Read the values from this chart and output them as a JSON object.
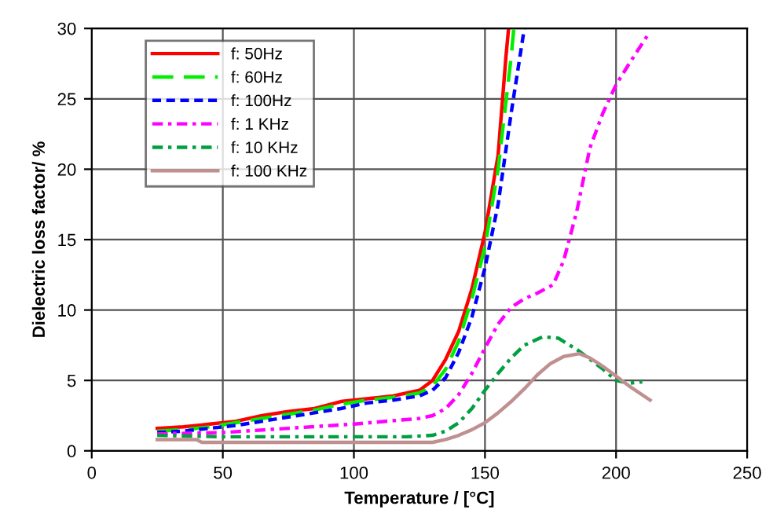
{
  "chart_data": {
    "type": "line",
    "xlabel": "Temperature / [°C]",
    "ylabel": "Dielectric loss factor/ %",
    "xlim": [
      0,
      250
    ],
    "xticks": [
      0,
      50,
      100,
      150,
      200,
      250
    ],
    "ylim": [
      0,
      30
    ],
    "yticks": [
      0,
      5,
      10,
      15,
      20,
      25,
      30
    ],
    "grid": true,
    "legend": "top left",
    "marker": "none",
    "series": [
      {
        "name": "f: 50Hz",
        "color": "#ff0000",
        "line_style": "solid",
        "x": [
          25,
          35,
          45,
          55,
          65,
          75,
          85,
          95,
          105,
          115,
          125,
          130,
          135,
          140,
          145,
          150,
          155,
          158,
          159
        ],
        "values": [
          1.6,
          1.7,
          1.9,
          2.1,
          2.5,
          2.8,
          3.0,
          3.5,
          3.7,
          3.9,
          4.3,
          5.0,
          6.5,
          8.5,
          11.5,
          15.5,
          21,
          28,
          30
        ]
      },
      {
        "name": "f: 60Hz",
        "color": "#00ee00",
        "line_style": "dashed",
        "x": [
          25,
          35,
          45,
          55,
          65,
          75,
          85,
          95,
          105,
          115,
          125,
          130,
          135,
          140,
          145,
          150,
          155,
          160,
          161
        ],
        "values": [
          1.4,
          1.5,
          1.7,
          2.0,
          2.3,
          2.6,
          2.9,
          3.3,
          3.6,
          3.8,
          4.1,
          4.6,
          5.8,
          7.8,
          10.8,
          14.5,
          20,
          28,
          30
        ]
      },
      {
        "name": "f: 100Hz",
        "color": "#0000ff",
        "line_style": "dotted",
        "x": [
          25,
          35,
          45,
          55,
          65,
          75,
          85,
          95,
          105,
          115,
          125,
          130,
          135,
          140,
          145,
          150,
          155,
          160,
          165
        ],
        "values": [
          1.3,
          1.4,
          1.6,
          1.8,
          2.1,
          2.4,
          2.7,
          3.0,
          3.4,
          3.6,
          3.9,
          4.3,
          5.2,
          7.0,
          9.5,
          13,
          17.5,
          24,
          30
        ]
      },
      {
        "name": "f: 1 KHz",
        "color": "#ff00ff",
        "line_style": "dashdot",
        "x": [
          25,
          50,
          75,
          100,
          125,
          130,
          135,
          140,
          145,
          150,
          155,
          160,
          165,
          170,
          176,
          180,
          185,
          190,
          195,
          200,
          205,
          212
        ],
        "values": [
          1.2,
          1.3,
          1.6,
          1.9,
          2.3,
          2.5,
          3.0,
          4.0,
          5.5,
          7.3,
          9.0,
          10.2,
          10.8,
          11.2,
          11.8,
          13.5,
          17,
          21.5,
          24,
          26,
          27.5,
          29.5
        ]
      },
      {
        "name": "f: 10 KHz",
        "color": "#00a040",
        "line_style": "dashdot",
        "x": [
          25,
          50,
          75,
          100,
          120,
          130,
          135,
          140,
          145,
          150,
          155,
          160,
          165,
          172,
          178,
          185,
          190,
          195,
          200,
          205,
          210
        ],
        "values": [
          1.1,
          1.0,
          1.0,
          1.0,
          1.0,
          1.1,
          1.4,
          2.0,
          3.0,
          4.3,
          5.5,
          6.6,
          7.5,
          8.1,
          8.0,
          7.2,
          6.5,
          5.8,
          5.0,
          4.8,
          4.9
        ]
      },
      {
        "name": "f: 100 KHz",
        "color": "#c09090",
        "line_style": "solid",
        "x": [
          25,
          40,
          42,
          60,
          100,
          130,
          135,
          140,
          145,
          150,
          155,
          160,
          165,
          170,
          175,
          180,
          186,
          190,
          195,
          200,
          205,
          213
        ],
        "values": [
          0.8,
          0.8,
          0.6,
          0.6,
          0.6,
          0.6,
          0.8,
          1.1,
          1.5,
          2.0,
          2.7,
          3.5,
          4.4,
          5.4,
          6.2,
          6.7,
          6.9,
          6.6,
          6.0,
          5.3,
          4.6,
          3.6
        ]
      }
    ]
  }
}
